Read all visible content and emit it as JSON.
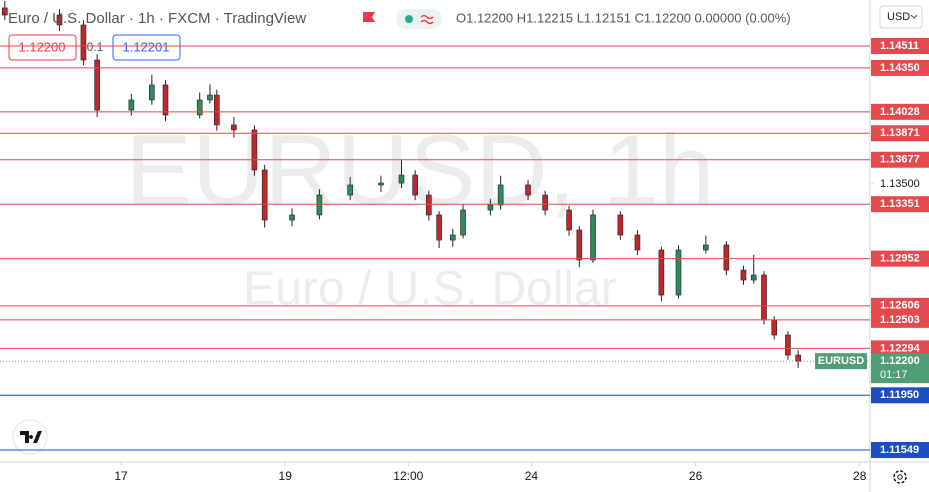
{
  "header": {
    "title": "Euro / U.S. Dollar · 1h · FXCM · TradingView",
    "ohlc": "O1.12200 H1.12215 L1.12151 C1.12200 0.00000 (0.00%)",
    "sell_price": "1.12200",
    "spread": "0.1",
    "buy_price": "1.12201",
    "currency": "USD"
  },
  "chart_data": {
    "type": "candlestick",
    "watermark": [
      "EURUSD, 1h",
      "Euro / U.S. Dollar"
    ],
    "x": [
      -34,
      -18,
      -11,
      -7,
      3,
      9,
      13,
      23,
      26,
      28,
      33,
      39,
      42,
      50,
      58,
      67,
      76,
      82,
      86,
      90,
      93,
      97,
      100,
      108,
      111,
      119,
      124,
      131,
      134,
      138,
      146,
      151,
      158,
      163,
      171,
      177,
      182,
      185,
      188,
      191,
      195,
      198
    ],
    "open": [
      1.1479,
      1.14738,
      1.14665,
      1.14408,
      1.14041,
      1.14115,
      1.14225,
      1.14005,
      1.14115,
      1.14151,
      1.13932,
      1.13895,
      1.13602,
      1.13235,
      1.13272,
      1.13418,
      1.13492,
      1.13506,
      1.13565,
      1.13418,
      1.13272,
      1.13088,
      1.13125,
      1.13308,
      1.13345,
      1.13492,
      1.13418,
      1.13308,
      1.13162,
      1.12942,
      1.13272,
      1.13125,
      1.13015,
      1.12685,
      1.13015,
      1.13052,
      1.12868,
      1.12795,
      1.12832,
      1.12502,
      1.12392,
      1.12245
    ],
    "high": [
      1.1484,
      1.1478,
      1.147,
      1.1445,
      1.1416,
      1.143,
      1.1426,
      1.1417,
      1.1423,
      1.1419,
      1.1399,
      1.1393,
      1.1364,
      1.1332,
      1.1346,
      1.1355,
      1.1356,
      1.1368,
      1.136,
      1.1345,
      1.133,
      1.1317,
      1.1335,
      1.1339,
      1.1356,
      1.1353,
      1.1345,
      1.1334,
      1.1319,
      1.1331,
      1.133,
      1.1316,
      1.1304,
      1.1305,
      1.1312,
      1.1308,
      1.129,
      1.1298,
      1.1286,
      1.1253,
      1.1242,
      1.1228
    ],
    "low": [
      1.147,
      1.1462,
      1.1437,
      1.1399,
      1.14,
      1.1408,
      1.1396,
      1.1398,
      1.1409,
      1.1389,
      1.1384,
      1.1356,
      1.1318,
      1.1319,
      1.1324,
      1.1338,
      1.1344,
      1.1347,
      1.1338,
      1.1323,
      1.1303,
      1.1304,
      1.131,
      1.1327,
      1.1331,
      1.1338,
      1.1327,
      1.1312,
      1.1289,
      1.1292,
      1.1309,
      1.1298,
      1.1264,
      1.1266,
      1.1299,
      1.1283,
      1.1276,
      1.1277,
      1.1247,
      1.1236,
      1.1221,
      1.12151
    ],
    "close": [
      1.14738,
      1.14665,
      1.14408,
      1.14041,
      1.14115,
      1.14225,
      1.14005,
      1.14115,
      1.14151,
      1.13932,
      1.13895,
      1.13602,
      1.13235,
      1.13272,
      1.13418,
      1.13492,
      1.13506,
      1.13565,
      1.13418,
      1.13272,
      1.13088,
      1.13125,
      1.13308,
      1.13345,
      1.13492,
      1.13418,
      1.13308,
      1.13162,
      1.12942,
      1.13272,
      1.13125,
      1.13015,
      1.12685,
      1.13015,
      1.13052,
      1.12868,
      1.12795,
      1.12832,
      1.12502,
      1.12392,
      1.12245,
      1.122
    ],
    "up_color": "#2e8b57",
    "down_color": "#c0262d",
    "xlim": [
      -35.4,
      219
    ],
    "xticks": [
      {
        "value": 0,
        "label": "17"
      },
      {
        "value": 48,
        "label": "19"
      },
      {
        "value": 84,
        "label": "12:00"
      },
      {
        "value": 120,
        "label": "24"
      },
      {
        "value": 168,
        "label": "26"
      },
      {
        "value": 216,
        "label": "28"
      }
    ],
    "ylim": [
      1.11461,
      1.14848
    ],
    "yticks": [
      {
        "value": 1.135,
        "label": "1.13500"
      }
    ],
    "levels": [
      {
        "price": 1.14511,
        "color": "#e5484d"
      },
      {
        "price": {
          "value": 1.1435,
          "label": "1.14350"
        },
        "color": "#e5484d"
      },
      {
        "price": 1.14028,
        "color": "#e5484d"
      },
      {
        "price": 1.13871,
        "color": "#e5484d"
      },
      {
        "price": 1.13677,
        "color": "#e5484d"
      },
      {
        "price": 1.13351,
        "color": "#e5484d"
      },
      {
        "price": 1.12952,
        "color": "#e5484d"
      },
      {
        "price": 1.12606,
        "color": "#e5484d"
      },
      {
        "price": 1.12503,
        "color": "#e5484d"
      },
      {
        "price": 1.12294,
        "color": "#e5484d"
      },
      {
        "price": {
          "value": 1.1195,
          "label": "1.11950"
        },
        "color": "#1d4fc4"
      },
      {
        "price": 1.11549,
        "color": "#1d4fc4"
      }
    ],
    "last_price": {
      "value": 1.122,
      "label": "1.12200"
    },
    "last_symbol": "EURUSD",
    "countdown": "01:17",
    "last_color": "#4f9e76"
  }
}
